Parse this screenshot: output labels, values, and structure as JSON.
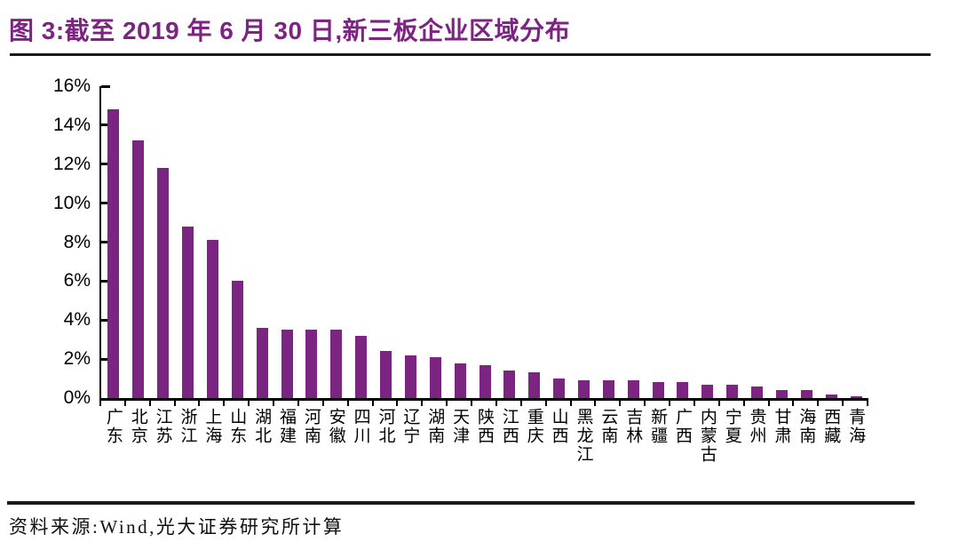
{
  "header": {
    "title": "图 3:截至 2019 年 6 月 30 日,新三板企业区域分布",
    "accent_color": "#7D2483"
  },
  "chart_data": {
    "type": "bar",
    "title": "截至 2019 年 6 月 30 日,新三板企业区域分布",
    "categories": [
      "广东",
      "北京",
      "江苏",
      "浙江",
      "上海",
      "山东",
      "湖北",
      "福建",
      "河南",
      "安徽",
      "四川",
      "河北",
      "辽宁",
      "湖南",
      "天津",
      "陕西",
      "江西",
      "重庆",
      "山西",
      "黑龙江",
      "云南",
      "吉林",
      "新疆",
      "广西",
      "内蒙古",
      "宁夏",
      "贵州",
      "甘肃",
      "海南",
      "西藏",
      "青海"
    ],
    "values": [
      14.8,
      13.2,
      11.8,
      8.8,
      8.1,
      6.0,
      3.6,
      3.5,
      3.5,
      3.5,
      3.2,
      2.4,
      2.2,
      2.1,
      1.8,
      1.7,
      1.4,
      1.3,
      1.0,
      0.9,
      0.9,
      0.9,
      0.8,
      0.8,
      0.7,
      0.7,
      0.6,
      0.4,
      0.4,
      0.2,
      0.1
    ],
    "unit": "%",
    "xlabel": "",
    "ylabel": "",
    "ylim": [
      0,
      16
    ],
    "ytick_step": 2,
    "ytick_labels": [
      "0%",
      "2%",
      "4%",
      "6%",
      "8%",
      "10%",
      "12%",
      "14%",
      "16%"
    ],
    "bar_color": "#7B2482",
    "axis_color": "#000000",
    "grid": false,
    "legend": false
  },
  "footer": {
    "source": "资料来源:Wind,光大证券研究所计算"
  }
}
